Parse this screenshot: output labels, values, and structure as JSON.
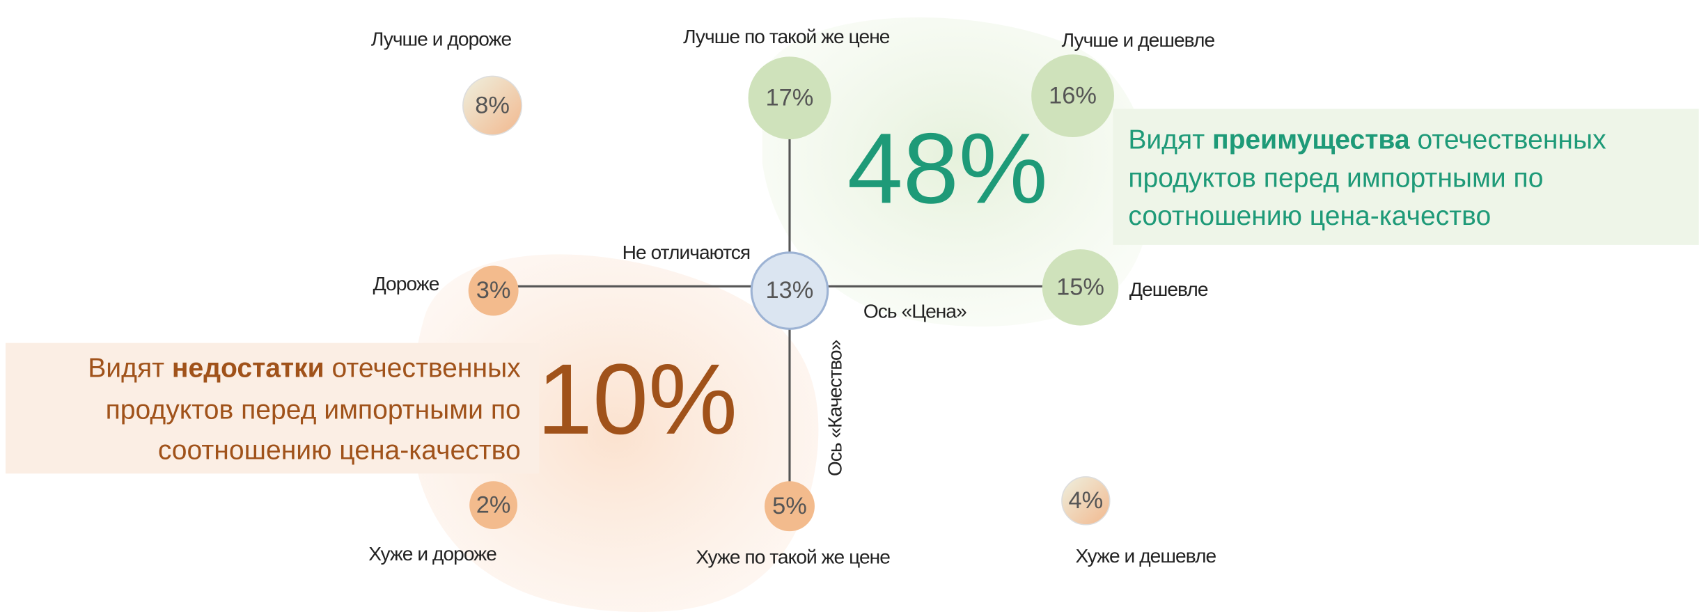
{
  "nodes": [
    {
      "label": "Лучше и дороже",
      "value": "8%"
    },
    {
      "label": "Лучше по такой же цене",
      "value": "17%"
    },
    {
      "label": "Лучше и дешевле",
      "value": "16%"
    },
    {
      "label": "Дороже",
      "value": "3%"
    },
    {
      "label": "Не отличаются",
      "value": "13%"
    },
    {
      "label": "Дешевле",
      "value": "15%"
    },
    {
      "label": "Хуже и дороже",
      "value": "2%"
    },
    {
      "label": "Хуже по такой же цене",
      "value": "5%"
    },
    {
      "label": "Хуже и дешевле",
      "value": "4%"
    }
  ],
  "axes": {
    "price": "Ось «Цена»",
    "quality": "Ось «Качество»"
  },
  "advantages": {
    "percent": "48%",
    "line1_start": "Видят",
    "line1_bold": "преимущества",
    "line1_end": "отечественных",
    "line2": "продуктов перед импортными по",
    "line3": "соотношению цена-качество"
  },
  "disadvantages": {
    "percent": "10%",
    "line1_start": "Видят",
    "line1_bold": "недостатки",
    "line1_end": "отечественных",
    "line2": "продуктов перед импортными по",
    "line3": "соотношению цена-качество"
  }
}
